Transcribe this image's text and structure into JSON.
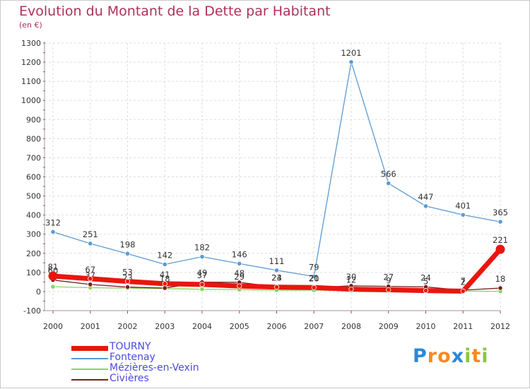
{
  "header": {
    "title": "Evolution du Montant de la Dette par Habitant",
    "subtitle": "(en €)"
  },
  "colors": {
    "title": "#b0305c",
    "legend_text": "#4a4ae0"
  },
  "chart_data": {
    "type": "line",
    "title": "Evolution du Montant de la Dette par Habitant",
    "ylabel": "(en €)",
    "xlabel": "",
    "x": [
      "2000",
      "2001",
      "2002",
      "2003",
      "2004",
      "2005",
      "2006",
      "2007",
      "2008",
      "2009",
      "2010",
      "2011",
      "2012"
    ],
    "ylim": [
      -100,
      1300
    ],
    "yticks": [
      -100,
      0,
      100,
      200,
      300,
      400,
      500,
      600,
      700,
      800,
      900,
      1000,
      1100,
      1200,
      1300
    ],
    "grid": true,
    "legend_position": "bottom-left",
    "series": [
      {
        "name": "Fontenay",
        "color": "#5b9bd1",
        "values": [
          312,
          251,
          198,
          142,
          182,
          146,
          111,
          79,
          1201,
          566,
          447,
          401,
          365
        ],
        "labels": [
          "312",
          "251",
          "198",
          "142",
          "182",
          "146",
          "111",
          "79",
          "1201",
          "566",
          "447",
          "401",
          "365"
        ]
      },
      {
        "name": "Mézières-en-Vexin",
        "color": "#88d65a",
        "values": [
          25,
          20,
          18,
          15,
          12,
          10,
          7,
          7,
          5,
          4,
          3,
          2,
          1
        ],
        "labels": [
          "",
          "",
          "",
          "",
          "",
          "",
          "",
          "",
          "",
          "",
          "",
          "",
          ""
        ]
      },
      {
        "name": "Civières",
        "color": "#7a1f1f",
        "values": [
          60,
          37,
          23,
          18,
          49,
          48,
          24,
          20,
          30,
          27,
          24,
          7,
          18
        ],
        "labels": [
          "60",
          "37",
          "23",
          "18",
          "49",
          "48",
          "24",
          "20",
          "30",
          "27",
          "24",
          "7",
          "18"
        ]
      },
      {
        "name": "TOURNY",
        "color": "#e8160f",
        "values": [
          81,
          67,
          53,
          41,
          37,
          29,
          23,
          21,
          12,
          9,
          5,
          2,
          221
        ],
        "labels": [
          "81",
          "67",
          "53",
          "41",
          "37",
          "29",
          "23",
          "21",
          "12",
          "9",
          "5",
          "2",
          "221"
        ]
      }
    ],
    "legend_order": [
      "TOURNY",
      "Fontenay",
      "Mézières-en-Vexin",
      "Civières"
    ]
  },
  "logo": {
    "letters": [
      "P",
      "r",
      "o",
      "x",
      "i",
      "t",
      "i"
    ],
    "colors": [
      "#2b88d8",
      "#f58b1f",
      "#f58b1f",
      "#2b88d8",
      "#8cc63f",
      "#f58b1f",
      "#8cc63f"
    ]
  }
}
